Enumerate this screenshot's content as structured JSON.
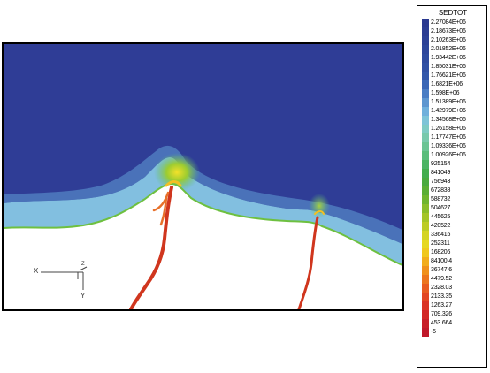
{
  "legend": {
    "title": "SEDTOT",
    "entries": [
      {
        "label": "2.27084E+06",
        "color": "#2a3990"
      },
      {
        "label": "2.18673E+06",
        "color": "#2b3d93"
      },
      {
        "label": "2.10263E+06",
        "color": "#2c4197"
      },
      {
        "label": "2.01852E+06",
        "color": "#2d469b"
      },
      {
        "label": "1.93442E+06",
        "color": "#2e4b9f"
      },
      {
        "label": "1.85031E+06",
        "color": "#3050a4"
      },
      {
        "label": "1.76621E+06",
        "color": "#3357aa"
      },
      {
        "label": "1.6821E+06",
        "color": "#3a67b6"
      },
      {
        "label": "1.598E+06",
        "color": "#4a7dc4"
      },
      {
        "label": "1.51389E+06",
        "color": "#5d96d0"
      },
      {
        "label": "1.42979E+06",
        "color": "#6fb0dc"
      },
      {
        "label": "1.34568E+06",
        "color": "#7dc4d8"
      },
      {
        "label": "1.26158E+06",
        "color": "#7ecbc4"
      },
      {
        "label": "1.17747E+06",
        "color": "#78c9ac"
      },
      {
        "label": "1.09336E+06",
        "color": "#6ac494"
      },
      {
        "label": "1.00926E+06",
        "color": "#5abd7c"
      },
      {
        "label": "925154",
        "color": "#4cb464"
      },
      {
        "label": "841049",
        "color": "#43ad4e"
      },
      {
        "label": "756943",
        "color": "#4aaa3e"
      },
      {
        "label": "672838",
        "color": "#5aae34"
      },
      {
        "label": "588732",
        "color": "#6fb52e"
      },
      {
        "label": "504627",
        "color": "#8abd2a"
      },
      {
        "label": "445625",
        "color": "#a4c528"
      },
      {
        "label": "420522",
        "color": "#bccc26"
      },
      {
        "label": "336416",
        "color": "#d4d424"
      },
      {
        "label": "252311",
        "color": "#e6d822"
      },
      {
        "label": "168206",
        "color": "#f0c81e"
      },
      {
        "label": "84100.4",
        "color": "#f2ad1c"
      },
      {
        "label": "36747.6",
        "color": "#f0911c"
      },
      {
        "label": "4479.52",
        "color": "#ec761e"
      },
      {
        "label": "2328.03",
        "color": "#e85c20"
      },
      {
        "label": "2133.35",
        "color": "#e24622"
      },
      {
        "label": "1263.27",
        "color": "#da3424"
      },
      {
        "label": "709.326",
        "color": "#d22626"
      },
      {
        "label": "453.664",
        "color": "#c81e28"
      },
      {
        "label": "-5",
        "color": "#c0182a"
      }
    ]
  },
  "axes": {
    "x_label": "X",
    "y_label": "Y",
    "z_label": "Z"
  },
  "colors": {
    "deep": "#2f3d96",
    "shore": "#8ccde8",
    "edge": "#6ec040",
    "land": "#ffffff",
    "channel": "#d0361e"
  }
}
